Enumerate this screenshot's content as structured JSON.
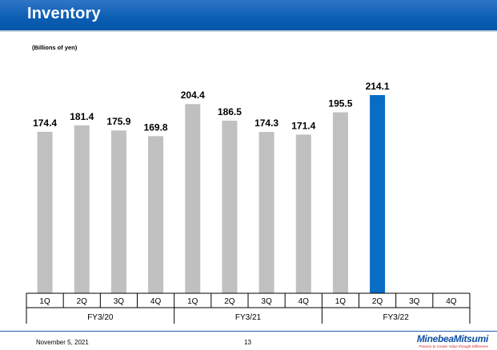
{
  "page": {
    "title": "Inventory",
    "unit": "(Billions of yen)",
    "date": "November 5, 2021",
    "page_number": "13",
    "logo": {
      "brand": "MinebeaMitsumi",
      "tagline": "Passion to Create Value through Difference"
    }
  },
  "colors": {
    "header": "#0b5db3",
    "bar_default": "#c0c0c0",
    "bar_highlight": "#0a6dc4"
  },
  "chart_data": {
    "type": "bar",
    "categories": [
      "1Q",
      "2Q",
      "3Q",
      "4Q",
      "1Q",
      "2Q",
      "3Q",
      "4Q",
      "1Q",
      "2Q",
      "3Q",
      "4Q"
    ],
    "groups": [
      {
        "label": "FY3/20",
        "quarters": 4
      },
      {
        "label": "FY3/21",
        "quarters": 4
      },
      {
        "label": "FY3/22",
        "quarters": 4
      }
    ],
    "values": [
      174.4,
      181.4,
      175.9,
      169.8,
      204.4,
      186.5,
      174.3,
      171.4,
      195.5,
      214.1,
      null,
      null
    ],
    "labels": [
      "174.4",
      "181.4",
      "175.9",
      "169.8",
      "204.4",
      "186.5",
      "174.3",
      "171.4",
      "195.5",
      "214.1",
      "",
      ""
    ],
    "highlight_index": 9,
    "ylim": [
      0,
      214.1
    ],
    "grid": false,
    "legend": "none"
  }
}
